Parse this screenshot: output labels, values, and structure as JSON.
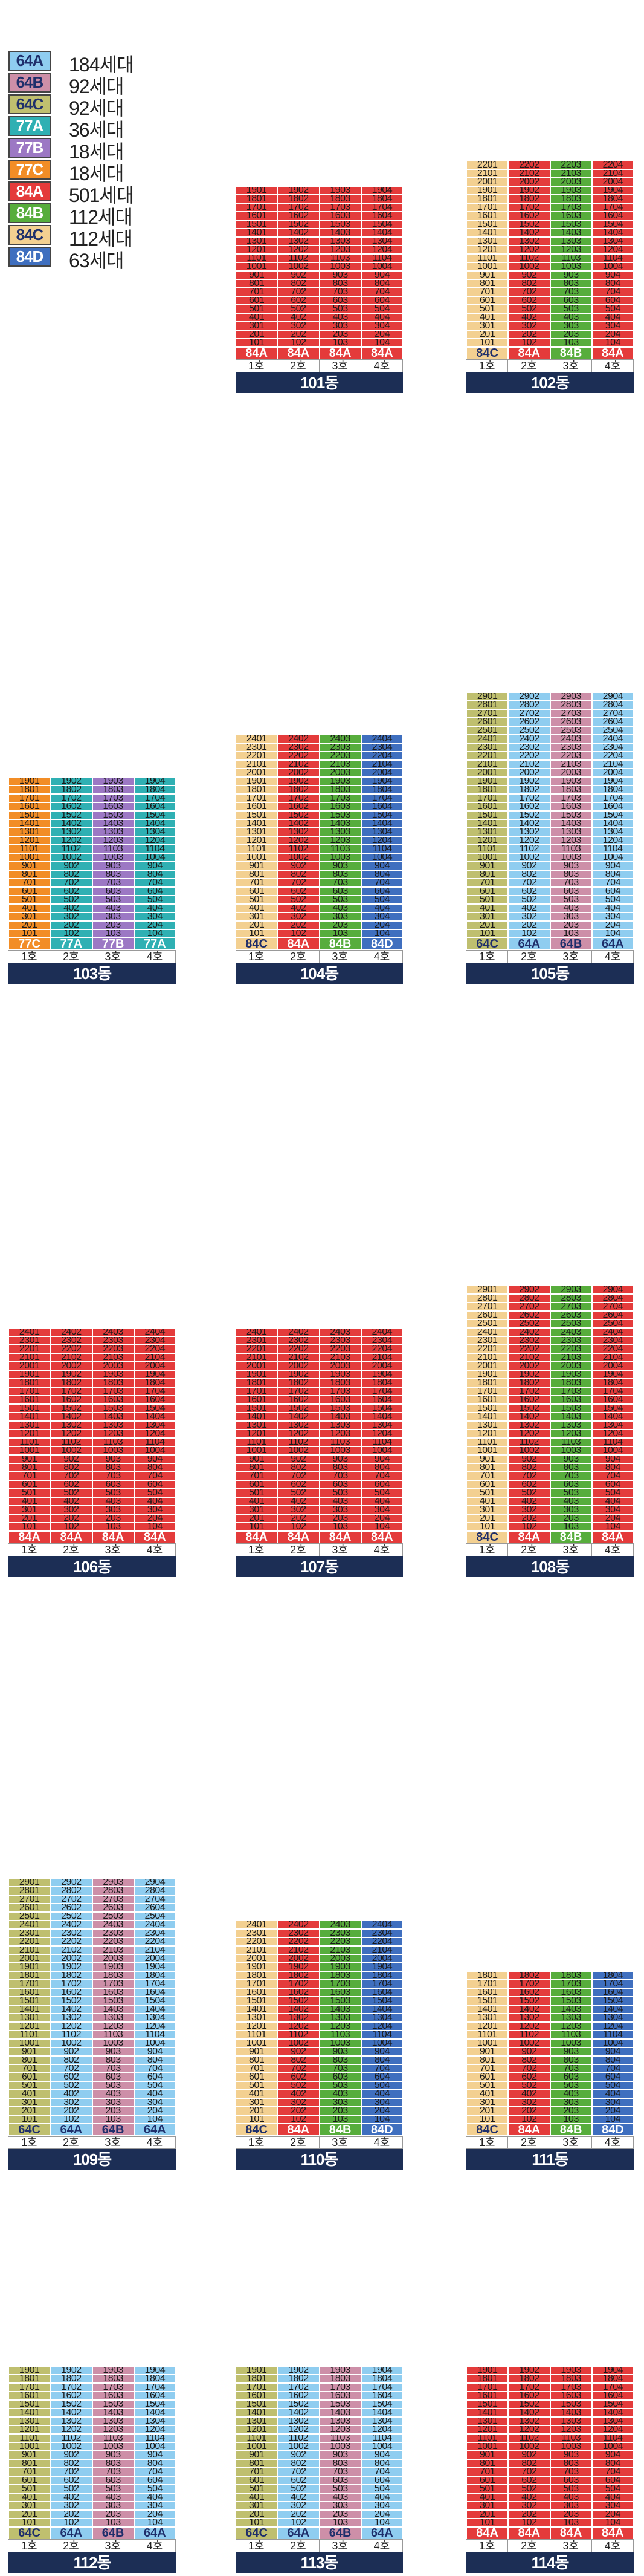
{
  "colors": {
    "64A": "#8fcdf0",
    "64B": "#cd8fa8",
    "64C": "#bfbf6f",
    "77A": "#2fb0b3",
    "77B": "#9c78c4",
    "77C": "#f28d26",
    "84A": "#e43b3b",
    "84B": "#57ad3c",
    "84C": "#f3d091",
    "84D": "#3f6fbf"
  },
  "legend": [
    {
      "type": "64A",
      "count": "184세대"
    },
    {
      "type": "64B",
      "count": "92세대"
    },
    {
      "type": "64C",
      "count": "92세대"
    },
    {
      "type": "77A",
      "count": "36세대"
    },
    {
      "type": "77B",
      "count": "18세대"
    },
    {
      "type": "77C",
      "count": "18세대"
    },
    {
      "type": "84A",
      "count": "501세대"
    },
    {
      "type": "84B",
      "count": "112세대"
    },
    {
      "type": "84C",
      "count": "112세대"
    },
    {
      "type": "84D",
      "count": "63세대"
    }
  ],
  "ho_labels": [
    "1호",
    "2호",
    "3호",
    "4호"
  ],
  "buildings": [
    {
      "name": "101동",
      "floors": 19,
      "types": [
        "84A",
        "84A",
        "84A",
        "84A"
      ]
    },
    {
      "name": "102동",
      "floors": 22,
      "types": [
        "84C",
        "84A",
        "84B",
        "84A"
      ]
    },
    {
      "name": "103동",
      "floors": 19,
      "types": [
        "77C",
        "77A",
        "77B",
        "77A"
      ]
    },
    {
      "name": "104동",
      "floors": 24,
      "types": [
        "84C",
        "84A",
        "84B",
        "84D"
      ]
    },
    {
      "name": "105동",
      "floors": 29,
      "types": [
        "64C",
        "64A",
        "64B",
        "64A"
      ]
    },
    {
      "name": "106동",
      "floors": 24,
      "types": [
        "84A",
        "84A",
        "84A",
        "84A"
      ]
    },
    {
      "name": "107동",
      "floors": 24,
      "types": [
        "84A",
        "84A",
        "84A",
        "84A"
      ]
    },
    {
      "name": "108동",
      "floors": 29,
      "types": [
        "84C",
        "84A",
        "84B",
        "84A"
      ]
    },
    {
      "name": "109동",
      "floors": 29,
      "types": [
        "64C",
        "64A",
        "64B",
        "64A"
      ]
    },
    {
      "name": "110동",
      "floors": 24,
      "types": [
        "84C",
        "84A",
        "84B",
        "84D"
      ]
    },
    {
      "name": "111동",
      "floors": 18,
      "types": [
        "84C",
        "84A",
        "84B",
        "84D"
      ]
    },
    {
      "name": "112동",
      "floors": 19,
      "types": [
        "64C",
        "64A",
        "64B",
        "64A"
      ]
    },
    {
      "name": "113동",
      "floors": 19,
      "types": [
        "64C",
        "64A",
        "64B",
        "64A"
      ]
    },
    {
      "name": "114동",
      "floors": 19,
      "types": [
        "84A",
        "84A",
        "84A",
        "84A"
      ]
    }
  ]
}
